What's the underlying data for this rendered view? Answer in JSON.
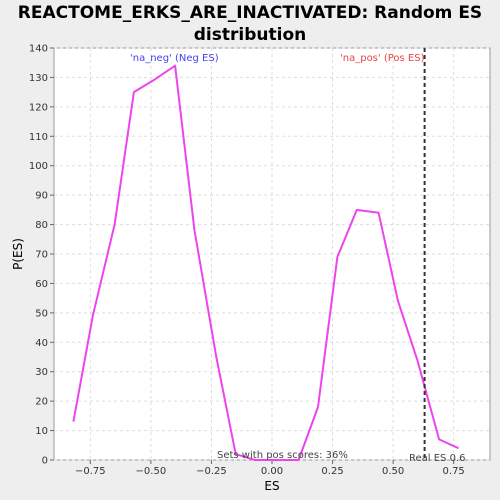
{
  "chart_data": {
    "type": "line",
    "title_line1": "REACTOME_ERKS_ARE_INACTIVATED: Random ES",
    "title_line2": "distribution",
    "xlabel": "ES",
    "ylabel": "P(ES)",
    "xlim": [
      -0.9,
      0.9
    ],
    "ylim": [
      0,
      140
    ],
    "x_ticks": [
      -0.75,
      -0.5,
      -0.25,
      0.0,
      0.25,
      0.5,
      0.75
    ],
    "x_tick_labels": [
      "−0.75",
      "−0.50",
      "−0.25",
      "0.00",
      "0.25",
      "0.50",
      "0.75"
    ],
    "y_ticks": [
      0,
      10,
      20,
      30,
      40,
      50,
      60,
      70,
      80,
      90,
      100,
      110,
      120,
      130,
      140
    ],
    "grid": true,
    "series": [
      {
        "color": "#ee44ee",
        "x": [
          -0.82,
          -0.74,
          -0.65,
          -0.57,
          -0.49,
          -0.4,
          -0.32,
          -0.23,
          -0.15,
          -0.07,
          0.02,
          0.11,
          0.19,
          0.27,
          0.35,
          0.44,
          0.52,
          0.6,
          0.69,
          0.77
        ],
        "y": [
          13,
          49,
          80,
          125,
          129,
          134,
          78,
          35,
          2,
          0,
          0,
          0,
          18,
          69,
          85,
          84,
          54,
          34,
          7,
          4
        ]
      }
    ],
    "real_es": {
      "x": 0.63,
      "label": "Real ES 0.6"
    },
    "annotations": {
      "neg_label": "'na_neg' (Neg ES)",
      "neg_color": "#4444ee",
      "pos_label": "'na_pos' (Pos ES)",
      "pos_color": "#ee4444",
      "sets_label": "Sets with pos scores: 36%"
    }
  }
}
